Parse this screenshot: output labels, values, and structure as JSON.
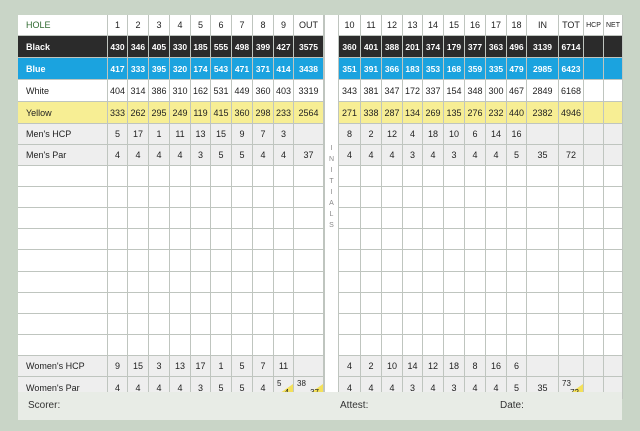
{
  "header": [
    "HOLE",
    "1",
    "2",
    "3",
    "4",
    "5",
    "6",
    "7",
    "8",
    "9",
    "OUT",
    "",
    "10",
    "11",
    "12",
    "13",
    "14",
    "15",
    "16",
    "17",
    "18",
    "IN",
    "TOT",
    "HCP",
    "NET"
  ],
  "initials_label": "INITIALS",
  "colors": {
    "card_bg": "#c9d5c7",
    "black_row": "#2b2b2b",
    "blue_row": "#1ba3df",
    "yellow_row": "#f7ee94",
    "gray_row": "#eeeeee",
    "split_corner": "#f4e15a",
    "header_text": "#2f6a2f"
  },
  "rows": [
    {
      "label": "Black",
      "style": "black",
      "cells": [
        "430",
        "346",
        "405",
        "330",
        "185",
        "555",
        "498",
        "399",
        "427",
        "3575",
        "",
        "360",
        "401",
        "388",
        "201",
        "374",
        "179",
        "377",
        "363",
        "496",
        "3139",
        "6714",
        "",
        ""
      ]
    },
    {
      "label": "Blue",
      "style": "blue",
      "cells": [
        "417",
        "333",
        "395",
        "320",
        "174",
        "543",
        "471",
        "371",
        "414",
        "3438",
        "",
        "351",
        "391",
        "366",
        "183",
        "353",
        "168",
        "359",
        "335",
        "479",
        "2985",
        "6423",
        "",
        ""
      ]
    },
    {
      "label": "White",
      "style": "white",
      "cells": [
        "404",
        "314",
        "386",
        "310",
        "162",
        "531",
        "449",
        "360",
        "403",
        "3319",
        "",
        "343",
        "381",
        "347",
        "172",
        "337",
        "154",
        "348",
        "300",
        "467",
        "2849",
        "6168",
        "",
        ""
      ]
    },
    {
      "label": "Yellow",
      "style": "yellow",
      "cells": [
        "333",
        "262",
        "295",
        "249",
        "119",
        "415",
        "360",
        "298",
        "233",
        "2564",
        "",
        "271",
        "338",
        "287",
        "134",
        "269",
        "135",
        "276",
        "232",
        "440",
        "2382",
        "4946",
        "",
        ""
      ]
    },
    {
      "label": "Men's HCP",
      "style": "gray",
      "cells": [
        "5",
        "17",
        "1",
        "11",
        "13",
        "15",
        "9",
        "7",
        "3",
        "",
        "",
        "8",
        "2",
        "12",
        "4",
        "18",
        "10",
        "6",
        "14",
        "16",
        "",
        "",
        "",
        ""
      ]
    },
    {
      "label": "Men's Par",
      "style": "gray",
      "cells": [
        "4",
        "4",
        "4",
        "4",
        "3",
        "5",
        "5",
        "4",
        "4",
        "37",
        "",
        "4",
        "4",
        "4",
        "3",
        "4",
        "3",
        "4",
        "4",
        "5",
        "35",
        "72",
        "",
        ""
      ]
    },
    {
      "label": "",
      "style": "white",
      "cells": [
        "",
        "",
        "",
        "",
        "",
        "",
        "",
        "",
        "",
        "",
        "",
        "",
        "",
        "",
        "",
        "",
        "",
        "",
        "",
        "",
        "",
        "",
        "",
        ""
      ]
    },
    {
      "label": "",
      "style": "white",
      "cells": [
        "",
        "",
        "",
        "",
        "",
        "",
        "",
        "",
        "",
        "",
        "",
        "",
        "",
        "",
        "",
        "",
        "",
        "",
        "",
        "",
        "",
        "",
        "",
        ""
      ]
    },
    {
      "label": "",
      "style": "white",
      "cells": [
        "",
        "",
        "",
        "",
        "",
        "",
        "",
        "",
        "",
        "",
        "",
        "",
        "",
        "",
        "",
        "",
        "",
        "",
        "",
        "",
        "",
        "",
        "",
        ""
      ]
    },
    {
      "label": "",
      "style": "white",
      "cells": [
        "",
        "",
        "",
        "",
        "",
        "",
        "",
        "",
        "",
        "",
        "",
        "",
        "",
        "",
        "",
        "",
        "",
        "",
        "",
        "",
        "",
        "",
        "",
        ""
      ]
    },
    {
      "label": "",
      "style": "white",
      "cells": [
        "",
        "",
        "",
        "",
        "",
        "",
        "",
        "",
        "",
        "",
        "",
        "",
        "",
        "",
        "",
        "",
        "",
        "",
        "",
        "",
        "",
        "",
        "",
        ""
      ]
    },
    {
      "label": "",
      "style": "white",
      "cells": [
        "",
        "",
        "",
        "",
        "",
        "",
        "",
        "",
        "",
        "",
        "",
        "",
        "",
        "",
        "",
        "",
        "",
        "",
        "",
        "",
        "",
        "",
        "",
        ""
      ]
    },
    {
      "label": "",
      "style": "white",
      "cells": [
        "",
        "",
        "",
        "",
        "",
        "",
        "",
        "",
        "",
        "",
        "",
        "",
        "",
        "",
        "",
        "",
        "",
        "",
        "",
        "",
        "",
        "",
        "",
        ""
      ]
    },
    {
      "label": "",
      "style": "white",
      "cells": [
        "",
        "",
        "",
        "",
        "",
        "",
        "",
        "",
        "",
        "",
        "",
        "",
        "",
        "",
        "",
        "",
        "",
        "",
        "",
        "",
        "",
        "",
        "",
        ""
      ]
    },
    {
      "label": "",
      "style": "white",
      "cells": [
        "",
        "",
        "",
        "",
        "",
        "",
        "",
        "",
        "",
        "",
        "",
        "",
        "",
        "",
        "",
        "",
        "",
        "",
        "",
        "",
        "",
        "",
        "",
        ""
      ]
    },
    {
      "label": "Women's HCP",
      "style": "gray",
      "cells": [
        "9",
        "15",
        "3",
        "13",
        "17",
        "1",
        "5",
        "7",
        "11",
        "",
        "",
        "4",
        "2",
        "10",
        "14",
        "12",
        "18",
        "8",
        "16",
        "6",
        "",
        "",
        "",
        ""
      ]
    },
    {
      "label": "Women's Par",
      "style": "gray",
      "cells": [
        "4",
        "4",
        "4",
        "4",
        "3",
        "5",
        "5",
        "4",
        {
          "upper": "5",
          "lower": "4"
        },
        {
          "upper": "38",
          "lower": "37"
        },
        "",
        "4",
        "4",
        "4",
        "3",
        "4",
        "3",
        "4",
        "4",
        "5",
        "35",
        {
          "upper": "73",
          "lower": "72"
        },
        "",
        ""
      ]
    }
  ],
  "footer": {
    "scorer": "Scorer:",
    "attest": "Attest:",
    "date": "Date:"
  }
}
